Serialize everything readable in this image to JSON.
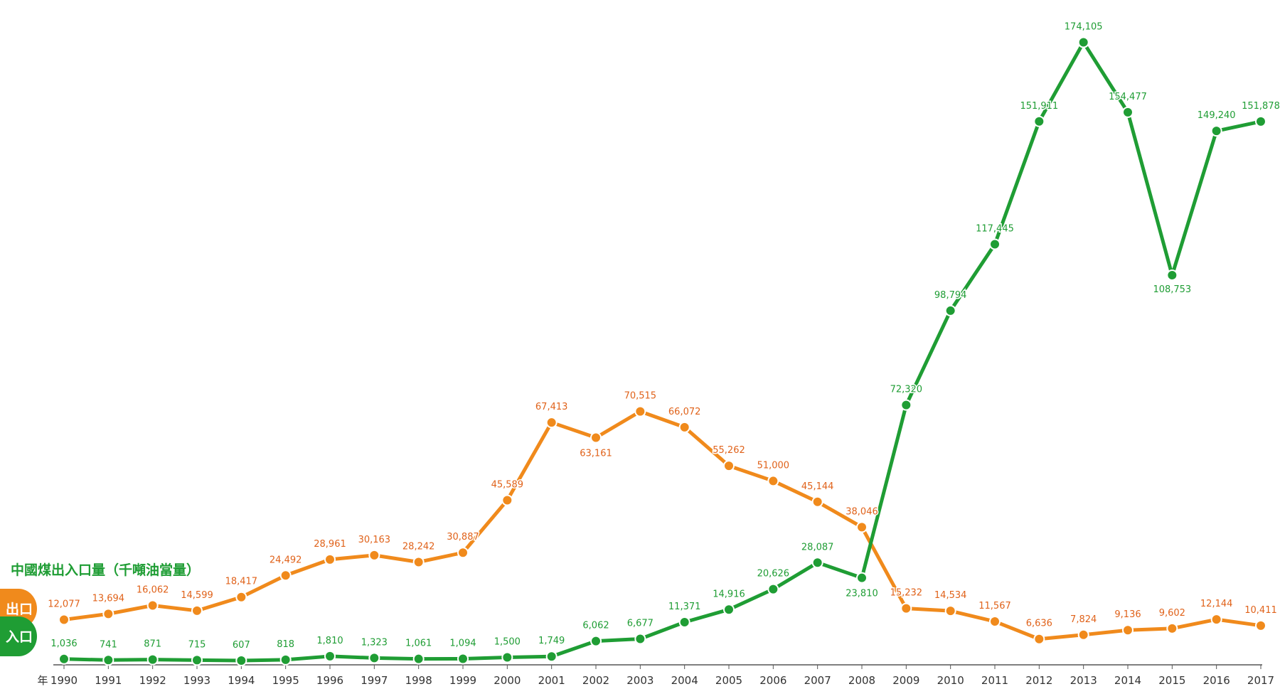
{
  "chart_data": {
    "type": "line",
    "title": "中國煤出入口量（千噸油當量）",
    "x_unit_label": "年",
    "x": [
      "1990",
      "1991",
      "1992",
      "1993",
      "1994",
      "1995",
      "1996",
      "1997",
      "1998",
      "1999",
      "2000",
      "2001",
      "2002",
      "2003",
      "2004",
      "2005",
      "2006",
      "2007",
      "2008",
      "2009",
      "2010",
      "2011",
      "2012",
      "2013",
      "2014",
      "2015",
      "2016",
      "2017"
    ],
    "ylim": [
      0,
      180000
    ],
    "grid": false,
    "legend": "left",
    "series": [
      {
        "name": "出口",
        "color": "#f08a1c",
        "label_color": "#e0621a",
        "values": [
          12077,
          13694,
          16062,
          14599,
          18417,
          24492,
          28961,
          30163,
          28242,
          30887,
          45589,
          67413,
          63161,
          70515,
          66072,
          55262,
          51000,
          45144,
          38046,
          15232,
          14534,
          11567,
          6636,
          7824,
          9136,
          9602,
          12144,
          10411
        ],
        "labels": [
          "12,077",
          "13,694",
          "16,062",
          "14,599",
          "18,417",
          "24,492",
          "28,961",
          "30,163",
          "28,242",
          "30,887",
          "45,589",
          "67,413",
          "63,161",
          "70,515",
          "66,072",
          "55,262",
          "51,000",
          "45,144",
          "38,046",
          "15,232",
          "14,534",
          "11,567",
          "6,636",
          "7,824",
          "9,136",
          "9,602",
          "12,144",
          "10,411"
        ]
      },
      {
        "name": "入口",
        "color": "#1f9d34",
        "label_color": "#1f9d34",
        "values": [
          1036,
          741,
          871,
          715,
          607,
          818,
          1810,
          1323,
          1061,
          1094,
          1500,
          1749,
          6062,
          6677,
          11371,
          14916,
          20626,
          28087,
          23810,
          72320,
          98794,
          117445,
          151911,
          174105,
          154477,
          108753,
          149240,
          151878
        ],
        "labels": [
          "1,036",
          "741",
          "871",
          "715",
          "607",
          "818",
          "1,810",
          "1,323",
          "1,061",
          "1,094",
          "1,500",
          "1,749",
          "6,062",
          "6,677",
          "11,371",
          "14,916",
          "20,626",
          "28,087",
          "23,810",
          "72,320",
          "98,794",
          "117,445",
          "151,911",
          "174,105",
          "154,477",
          "108,753",
          "149,240",
          "151,878"
        ]
      }
    ]
  }
}
